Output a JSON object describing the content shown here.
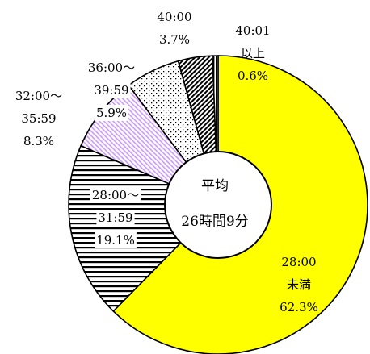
{
  "chart_data": {
    "type": "pie",
    "variant": "donut",
    "title": "",
    "center": {
      "line1": "平均",
      "line2": "26時間9分"
    },
    "slices": [
      {
        "id": "lt28",
        "lines": [
          "28:00",
          "未満",
          "62.3%"
        ],
        "value": 62.3,
        "fill": "yellow",
        "color": "#ffff00"
      },
      {
        "id": "28_31",
        "lines": [
          "28:00～",
          "31:59",
          "19.1%"
        ],
        "value": 19.1,
        "fill": "hlines",
        "color": "#000000"
      },
      {
        "id": "32_35",
        "lines": [
          "32:00～",
          "35:59",
          "8.3%"
        ],
        "value": 8.3,
        "fill": "diag",
        "color": "#cc99ff"
      },
      {
        "id": "36_39",
        "lines": [
          "36:00～",
          "39:59",
          "5.9%"
        ],
        "value": 5.9,
        "fill": "dots",
        "color": "#000000"
      },
      {
        "id": "40",
        "lines": [
          "40:00",
          "3.7%"
        ],
        "value": 3.7,
        "fill": "hatch",
        "color": "#000000"
      },
      {
        "id": "gt40",
        "lines": [
          "40:01",
          "以上",
          "0.6%"
        ],
        "value": 0.6,
        "fill": "vlines",
        "color": "#000000"
      }
    ]
  }
}
